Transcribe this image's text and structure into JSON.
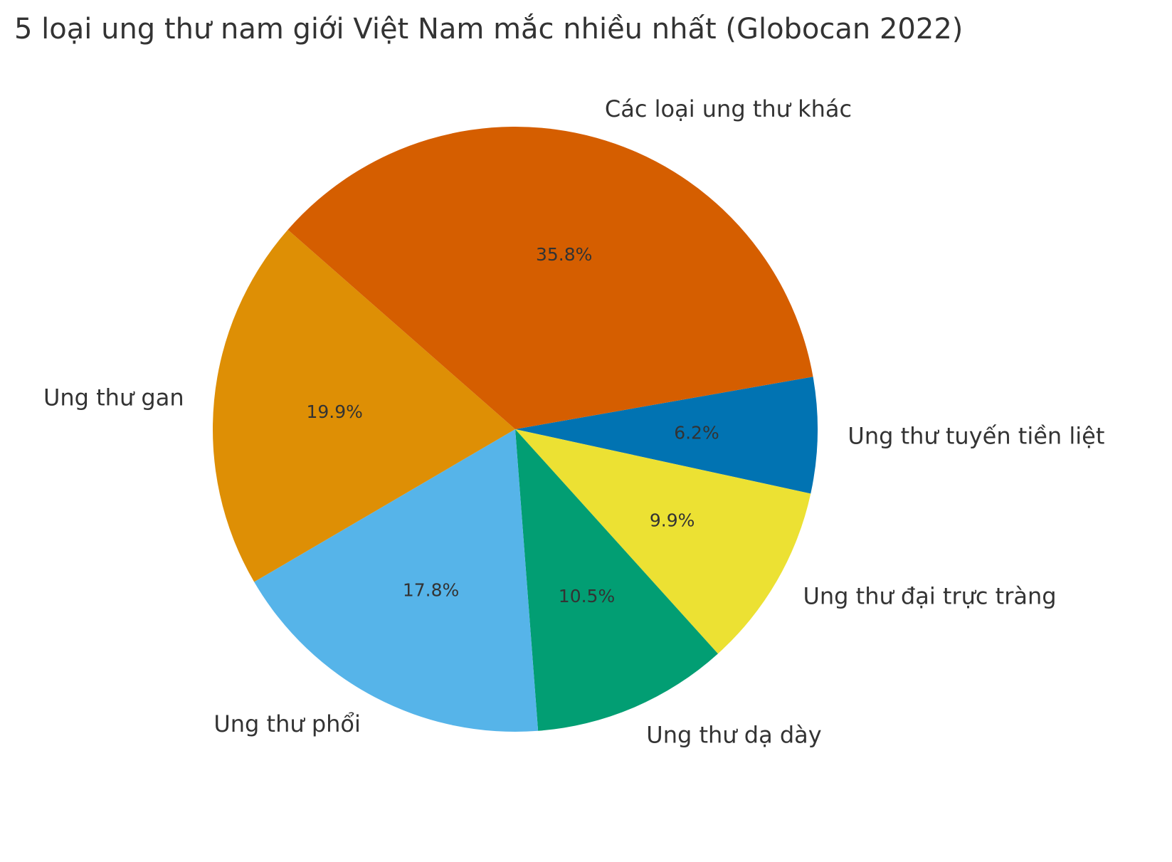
{
  "chart_data": {
    "type": "pie",
    "title": "5 loại ung thư nam giới Việt Nam mắc nhiều nhất (Globocan 2022)",
    "slices": [
      {
        "label": "Ung thư tuyến tiền liệt",
        "value": 6.2,
        "pct_label": "6.2%",
        "color": "#0173b2"
      },
      {
        "label": "Ung thư đại trực tràng",
        "value": 9.9,
        "pct_label": "9.9%",
        "color": "#ece133"
      },
      {
        "label": "Ung thư dạ dày",
        "value": 10.5,
        "pct_label": "10.5%",
        "color": "#029e73"
      },
      {
        "label": "Ung thư phổi",
        "value": 17.8,
        "pct_label": "17.8%",
        "color": "#56b4e9"
      },
      {
        "label": "Ung thư gan",
        "value": 19.9,
        "pct_label": "19.9%",
        "color": "#de8f05"
      },
      {
        "label": "Các loại ung thư khác",
        "value": 35.8,
        "pct_label": "35.8%",
        "color": "#d55e00"
      }
    ],
    "start_angle_deg": -10,
    "direction": "clockwise",
    "legend": "none"
  }
}
